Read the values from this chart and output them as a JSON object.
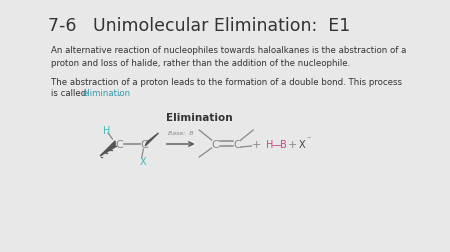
{
  "title": "7-6   Unimolecular Elimination:  E1",
  "bg_color": "#e8e8e8",
  "text_color": "#333333",
  "para1": "An alternative reaction of nucleophiles towards haloalkanes is the abstraction of a\nproton and loss of halide, rather than the addition of the nucleophile.",
  "para2_line1": "The abstraction of a proton leads to the formation of a double bond. This process",
  "para2_line2_before": "is called ",
  "para2_link": "elimination",
  "para2_after": ".",
  "link_color": "#3399aa",
  "elimination_label": "Elimination",
  "reactant_color": "#888888",
  "H_color": "#44bbbb",
  "X_color": "#44bbbb",
  "HB_color": "#cc4488",
  "Xminus_color": "#444444",
  "base_label_color": "#888888",
  "para_fontsize": 6.2,
  "title_fontsize": 12.5,
  "elim_label_fontsize": 7.5
}
